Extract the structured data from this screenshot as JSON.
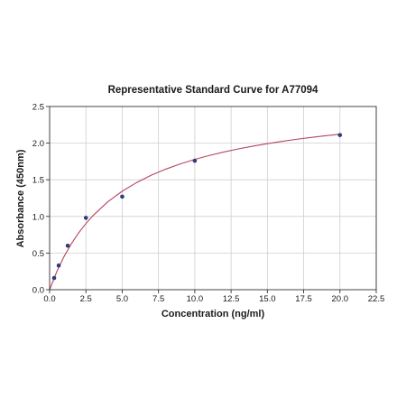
{
  "chart_data": {
    "type": "scatter",
    "title": "Representative Standard Curve for A77094",
    "xlabel": "Concentration (ng/ml)",
    "ylabel": "Absorbance (450nm)",
    "xlim": [
      0,
      22.5
    ],
    "ylim": [
      0,
      2.5
    ],
    "xticks": [
      "0.0",
      "2.5",
      "5.0",
      "7.5",
      "10.0",
      "12.5",
      "15.0",
      "17.5",
      "20.0",
      "22.5"
    ],
    "yticks": [
      "0.0",
      "0.5",
      "1.0",
      "1.5",
      "2.0",
      "2.5"
    ],
    "grid": true,
    "series": [
      {
        "type": "scatter",
        "x": [
          0.3125,
          0.625,
          1.25,
          2.5,
          5.0,
          10.0,
          20.0
        ],
        "y": [
          0.16,
          0.33,
          0.6,
          0.98,
          1.27,
          1.76,
          2.11
        ],
        "color": "#2e3c7a"
      },
      {
        "type": "line",
        "fit": "hyperbolic",
        "x": [
          0,
          0.5,
          1,
          1.5,
          2,
          2.5,
          3,
          4,
          5,
          6,
          7,
          8,
          9,
          10,
          11,
          12,
          13,
          14,
          15,
          16,
          17,
          18,
          19,
          20
        ],
        "y": [
          0.0,
          0.249,
          0.455,
          0.628,
          0.776,
          0.903,
          1.014,
          1.198,
          1.344,
          1.463,
          1.562,
          1.645,
          1.716,
          1.778,
          1.832,
          1.879,
          1.921,
          1.959,
          1.993,
          2.024,
          2.052,
          2.077,
          2.1,
          2.122
        ],
        "color": "#b5455e"
      }
    ]
  }
}
